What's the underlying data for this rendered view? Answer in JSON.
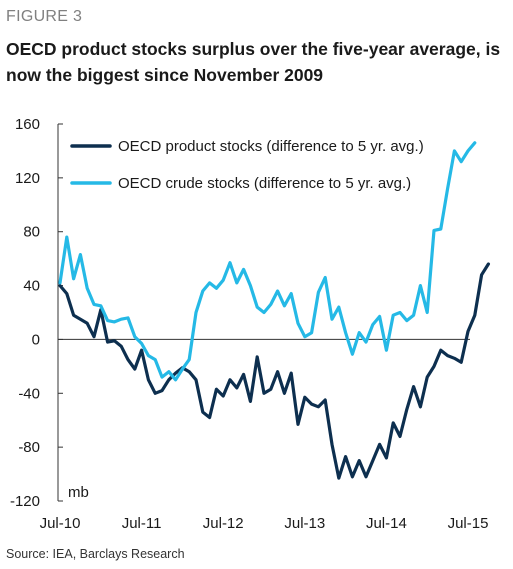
{
  "figure_label": "FIGURE 3",
  "title": "OECD product stocks surplus over the five-year average, is now the biggest since November 2009",
  "source": "Source: IEA, Barclays Research",
  "colors": {
    "product": "#0d2f4f",
    "crude": "#25b9e6"
  },
  "chart_data": {
    "type": "line",
    "title": "OECD product stocks surplus over the five-year average, is now the biggest since November 2009",
    "xlabel": "",
    "ylabel": "mb",
    "ylim": [
      -120,
      160
    ],
    "yticks": [
      -120,
      -80,
      -40,
      0,
      40,
      80,
      120,
      160
    ],
    "xtick_labels": [
      "Jul-10",
      "Jul-11",
      "Jul-12",
      "Jul-13",
      "Jul-14",
      "Jul-15"
    ],
    "x_start": "Jul-10",
    "x_end": "Jul-15",
    "x_step": "month",
    "grid": false,
    "legend_position": "top-left",
    "series": [
      {
        "name": "OECD product stocks (difference to 5 yr. avg.)",
        "color": "#0d2f4f",
        "values": [
          40,
          34,
          18,
          15,
          12,
          2,
          22,
          -2,
          -1,
          -5,
          -15,
          -22,
          -8,
          -30,
          -40,
          -38,
          -30,
          -25,
          -21,
          -24,
          -30,
          -54,
          -58,
          -37,
          -42,
          -30,
          -36,
          -26,
          -46,
          -13,
          -40,
          -37,
          -24,
          -40,
          -25,
          -63,
          -43,
          -48,
          -50,
          -45,
          -78,
          -103,
          -87,
          -102,
          -90,
          -102,
          -90,
          -78,
          -88,
          -62,
          -72,
          -52,
          -35,
          -50,
          -28,
          -20,
          -8,
          -12,
          -14,
          -17,
          6,
          18,
          48,
          56
        ]
      },
      {
        "name": "OECD crude stocks (difference to 5 yr. avg.)",
        "color": "#25b9e6",
        "values": [
          42,
          76,
          45,
          63,
          38,
          26,
          25,
          14,
          13,
          15,
          16,
          2,
          -3,
          -12,
          -15,
          -28,
          -24,
          -30,
          -22,
          -15,
          20,
          36,
          42,
          38,
          44,
          57,
          42,
          52,
          40,
          24,
          20,
          26,
          36,
          25,
          34,
          12,
          2,
          5,
          35,
          46,
          15,
          24,
          5,
          -11,
          5,
          -2,
          11,
          17,
          -8,
          18,
          20,
          14,
          18,
          40,
          20,
          81,
          82,
          112,
          140,
          132,
          140,
          146
        ]
      }
    ]
  }
}
